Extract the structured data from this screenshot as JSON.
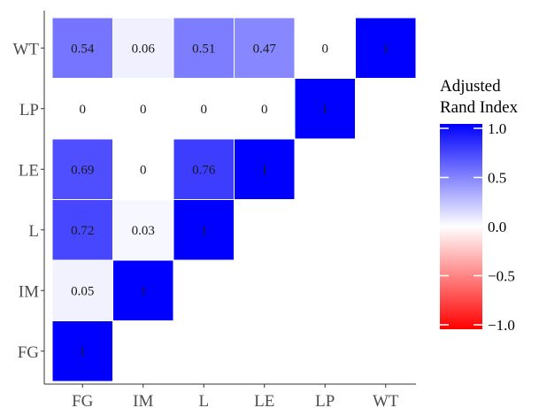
{
  "chart_data": {
    "type": "heatmap",
    "x_categories": [
      "FG",
      "IM",
      "L",
      "LE",
      "LP",
      "WT"
    ],
    "y_categories": [
      "FG",
      "IM",
      "L",
      "LE",
      "LP",
      "WT"
    ],
    "cells": [
      {
        "x": "FG",
        "y": "FG",
        "value": 1,
        "label": "1"
      },
      {
        "x": "FG",
        "y": "IM",
        "value": 0.05,
        "label": "0.05"
      },
      {
        "x": "IM",
        "y": "IM",
        "value": 1,
        "label": "1"
      },
      {
        "x": "FG",
        "y": "L",
        "value": 0.72,
        "label": "0.72"
      },
      {
        "x": "IM",
        "y": "L",
        "value": 0.03,
        "label": "0.03"
      },
      {
        "x": "L",
        "y": "L",
        "value": 1,
        "label": "1"
      },
      {
        "x": "FG",
        "y": "LE",
        "value": 0.69,
        "label": "0.69"
      },
      {
        "x": "IM",
        "y": "LE",
        "value": 0,
        "label": "0"
      },
      {
        "x": "L",
        "y": "LE",
        "value": 0.76,
        "label": "0.76"
      },
      {
        "x": "LE",
        "y": "LE",
        "value": 1,
        "label": "1"
      },
      {
        "x": "FG",
        "y": "LP",
        "value": 0,
        "label": "0"
      },
      {
        "x": "IM",
        "y": "LP",
        "value": 0,
        "label": "0"
      },
      {
        "x": "L",
        "y": "LP",
        "value": 0,
        "label": "0"
      },
      {
        "x": "LE",
        "y": "LP",
        "value": 0,
        "label": "0"
      },
      {
        "x": "LP",
        "y": "LP",
        "value": 1,
        "label": "1"
      },
      {
        "x": "FG",
        "y": "WT",
        "value": 0.54,
        "label": "0.54"
      },
      {
        "x": "IM",
        "y": "WT",
        "value": 0.06,
        "label": "0.06"
      },
      {
        "x": "L",
        "y": "WT",
        "value": 0.51,
        "label": "0.51"
      },
      {
        "x": "LE",
        "y": "WT",
        "value": 0.47,
        "label": "0.47"
      },
      {
        "x": "LP",
        "y": "WT",
        "value": 0,
        "label": "0"
      },
      {
        "x": "WT",
        "y": "WT",
        "value": 1,
        "label": "1"
      }
    ],
    "legend": {
      "title_lines": [
        "Adjusted",
        "Rand Index"
      ],
      "range": [
        -1.0,
        1.0
      ],
      "ticks": [
        {
          "value": 1.0,
          "label": "1.0"
        },
        {
          "value": 0.5,
          "label": "0.5"
        },
        {
          "value": 0.0,
          "label": "0.0"
        },
        {
          "value": -0.5,
          "label": "−0.5"
        },
        {
          "value": -1.0,
          "label": "−1.0"
        }
      ],
      "placement": "right"
    },
    "colors": {
      "low": "#ff0000",
      "mid": "#ffffff",
      "high": "#0000ff"
    },
    "grid": false
  }
}
